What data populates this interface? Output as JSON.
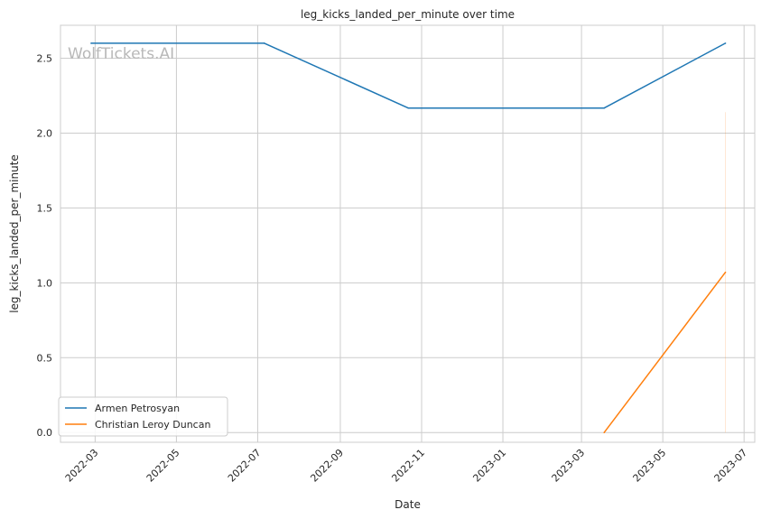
{
  "chart_data": {
    "type": "line",
    "title": "leg_kicks_landed_per_minute over time",
    "xlabel": "Date",
    "ylabel": "leg_kicks_landed_per_minute",
    "watermark": "WolfTickets.AI",
    "x_ticks": [
      "2022-03",
      "2022-05",
      "2022-07",
      "2022-09",
      "2022-11",
      "2023-01",
      "2023-03",
      "2023-05",
      "2023-07"
    ],
    "y_ticks": [
      "0.0",
      "0.5",
      "1.0",
      "1.5",
      "2.0",
      "2.5"
    ],
    "xlim": [
      "2022-02-03",
      "2023-07-09"
    ],
    "ylim": [
      -0.065,
      2.72
    ],
    "grid": true,
    "legend_position": "lower-left",
    "series": [
      {
        "name": "Armen Petrosyan",
        "color": "#1f77b4",
        "points": [
          {
            "x": "2022-02-26",
            "y": 2.6
          },
          {
            "x": "2022-07-06",
            "y": 2.6
          },
          {
            "x": "2022-10-22",
            "y": 2.167
          },
          {
            "x": "2023-03-18",
            "y": 2.167
          },
          {
            "x": "2023-06-17",
            "y": 2.6
          }
        ]
      },
      {
        "name": "Christian Leroy Duncan",
        "color": "#ff7f0e",
        "points": [
          {
            "x": "2023-03-18",
            "y": 0.0
          },
          {
            "x": "2023-06-17",
            "y": 1.07
          }
        ],
        "band": {
          "x": "2023-06-17",
          "low": 0.0,
          "high": 2.14
        }
      }
    ]
  }
}
